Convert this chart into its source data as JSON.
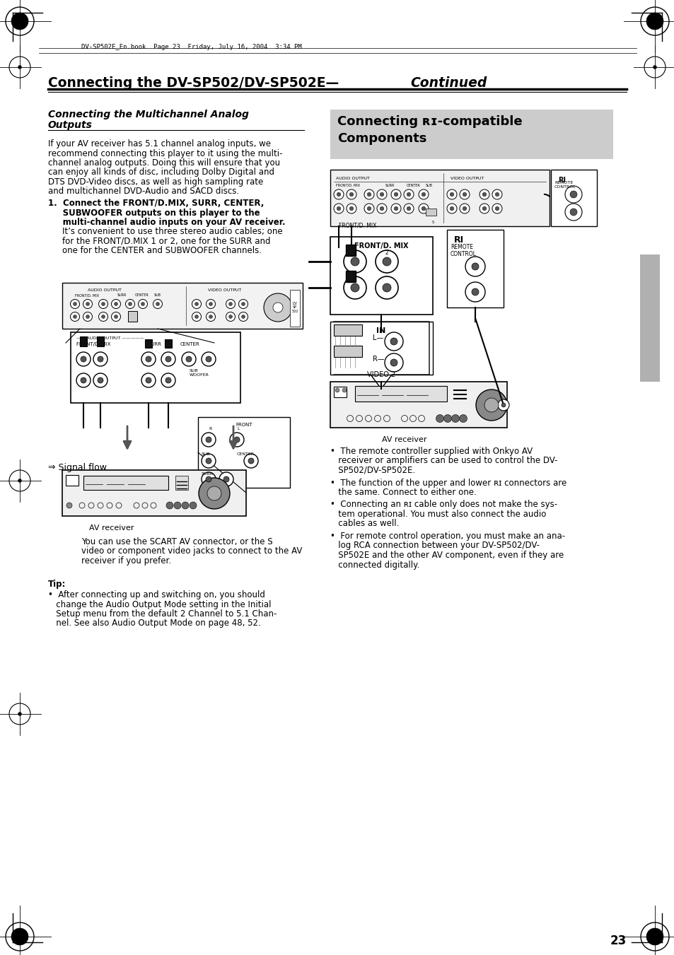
{
  "page_bg": "#ffffff",
  "header_text": "DV-SP502E_En.book  Page 23  Friday, July 16, 2004  3:34 PM",
  "title_normal": "Connecting the DV-SP502/DV-SP502E—",
  "title_italic": "Continued",
  "left_section_heading_line1": "Connecting the Multichannel Analog",
  "left_section_heading_line2": "Outputs",
  "body1_lines": [
    "If your AV receiver has 5.1 channel analog inputs, we",
    "recommend connecting this player to it using the multi-",
    "channel analog outputs. Doing this will ensure that you",
    "can enjoy all kinds of disc, including Dolby Digital and",
    "DTS DVD-Video discs, as well as high sampling rate",
    "and multichannel DVD-Audio and SACD discs."
  ],
  "step1_bold_lines": [
    "1.  Connect the FRONT/D.MIX, SURR, CENTER,",
    "     SUBWOOFER outputs on this player to the",
    "     multi-channel audio inputs on your AV receiver."
  ],
  "step1_normal_lines": [
    "It’s convenient to use three stereo audio cables; one",
    "for the FRONT/D.MIX 1 or 2, one for the SURR and",
    "one for the CENTER and SUBWOOFER channels."
  ],
  "signal_flow_label": "⇒ Signal flow",
  "av_receiver_label": "AV receiver",
  "note_lines": [
    "You can use the SCART AV connector, or the S",
    "video or component video jacks to connect to the AV",
    "receiver if you prefer."
  ],
  "tip_heading": "Tip:",
  "tip_lines": [
    "•  After connecting up and switching on, you should",
    "   change the Audio Output Mode setting in the Initial",
    "   Setup menu from the default 2 Channel to 5.1 Chan-",
    "   nel. See also Audio Output Mode on page 48, 52."
  ],
  "right_heading_line1": "Connecting ʀɪ-compatible",
  "right_heading_line2": "Components",
  "right_av_label": "AV receiver",
  "bullet1_lines": [
    "•  The remote controller supplied with Onkyo AV",
    "   receiver or amplifiers can be used to control the DV-",
    "   SP502/DV-SP502E."
  ],
  "bullet2_lines": [
    "•  The function of the upper and lower ʀɪ connectors are",
    "   the same. Connect to either one."
  ],
  "bullet3_lines": [
    "•  Connecting an ʀɪ cable only does not make the sys-",
    "   tem operational. You must also connect the audio",
    "   cables as well."
  ],
  "bullet4_lines": [
    "•  For remote control operation, you must make an ana-",
    "   log RCA connection between your DV-SP502/DV-",
    "   SP502E and the other AV component, even if they are",
    "   connected digitally."
  ],
  "page_number": "23",
  "right_section_bg": "#cccccc",
  "gray_tab_color": "#b0b0b0"
}
